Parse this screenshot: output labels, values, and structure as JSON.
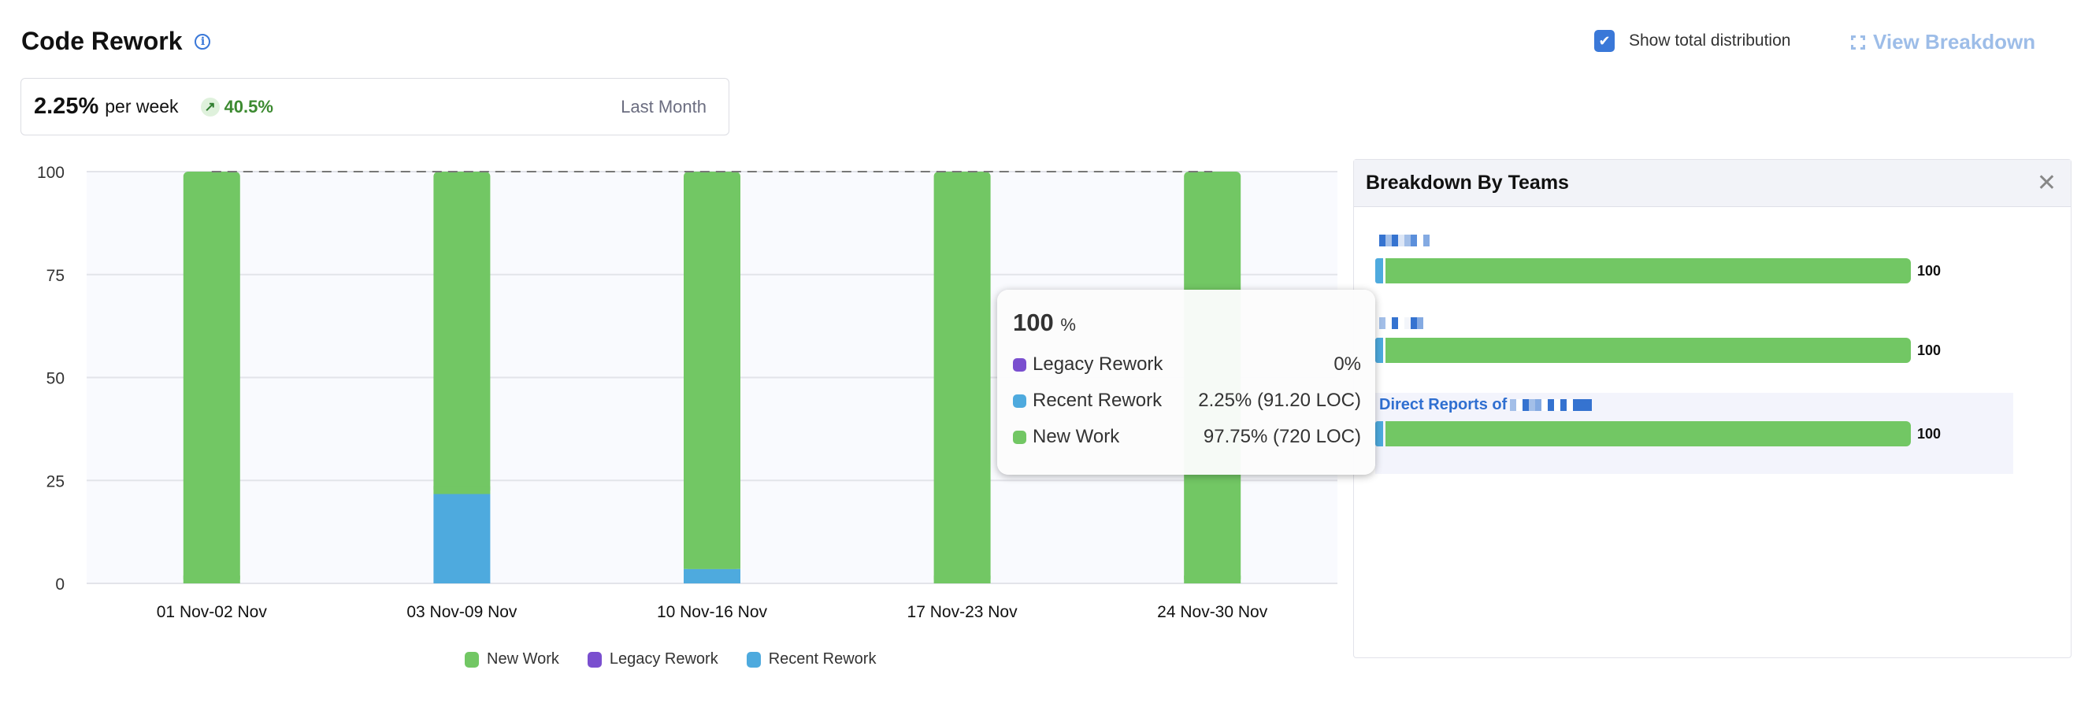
{
  "header": {
    "title": "Code Rework",
    "info_icon": "info-icon"
  },
  "summary": {
    "value": "2.25%",
    "unit": "per week",
    "trend": "40.5%",
    "trend_direction": "up",
    "period": "Last Month"
  },
  "controls": {
    "show_total_label": "Show total distribution",
    "show_total_checked": true,
    "view_breakdown_label": "View Breakdown"
  },
  "chart_data": {
    "type": "bar",
    "stacked": true,
    "categories": [
      "01 Nov-02 Nov",
      "03 Nov-09 Nov",
      "10 Nov-16 Nov",
      "17 Nov-23 Nov",
      "24 Nov-30 Nov"
    ],
    "series": [
      {
        "name": "Recent Rework",
        "color": "#4eaade",
        "values": [
          0,
          21.7,
          3.5,
          0,
          0
        ]
      },
      {
        "name": "Legacy Rework",
        "color": "#7a4fcf",
        "values": [
          0,
          0,
          0,
          0,
          0
        ]
      },
      {
        "name": "New Work",
        "color": "#72c764",
        "values": [
          100,
          78.3,
          96.5,
          100,
          100
        ]
      }
    ],
    "legend": [
      "New Work",
      "Legacy Rework",
      "Recent Rework"
    ],
    "yticks": [
      "0",
      "25",
      "50",
      "75",
      "100"
    ],
    "ylim": [
      0,
      100
    ],
    "grid": true,
    "legend_position": "bottom",
    "reference_line": 100
  },
  "tooltip": {
    "total": "100",
    "unit": "%",
    "rows": [
      {
        "label": "Legacy Rework",
        "value": "0%",
        "color": "#7a4fcf"
      },
      {
        "label": "Recent Rework",
        "value": "2.25% (91.20 LOC)",
        "color": "#4eaade"
      },
      {
        "label": "New Work",
        "value": "97.75% (720 LOC)",
        "color": "#72c764"
      }
    ]
  },
  "breakdown": {
    "title": "Breakdown By Teams",
    "teams": [
      {
        "name": "",
        "value": "100"
      },
      {
        "name": "",
        "value": "100"
      },
      {
        "name": "Direct Reports of",
        "value": "100"
      }
    ]
  }
}
